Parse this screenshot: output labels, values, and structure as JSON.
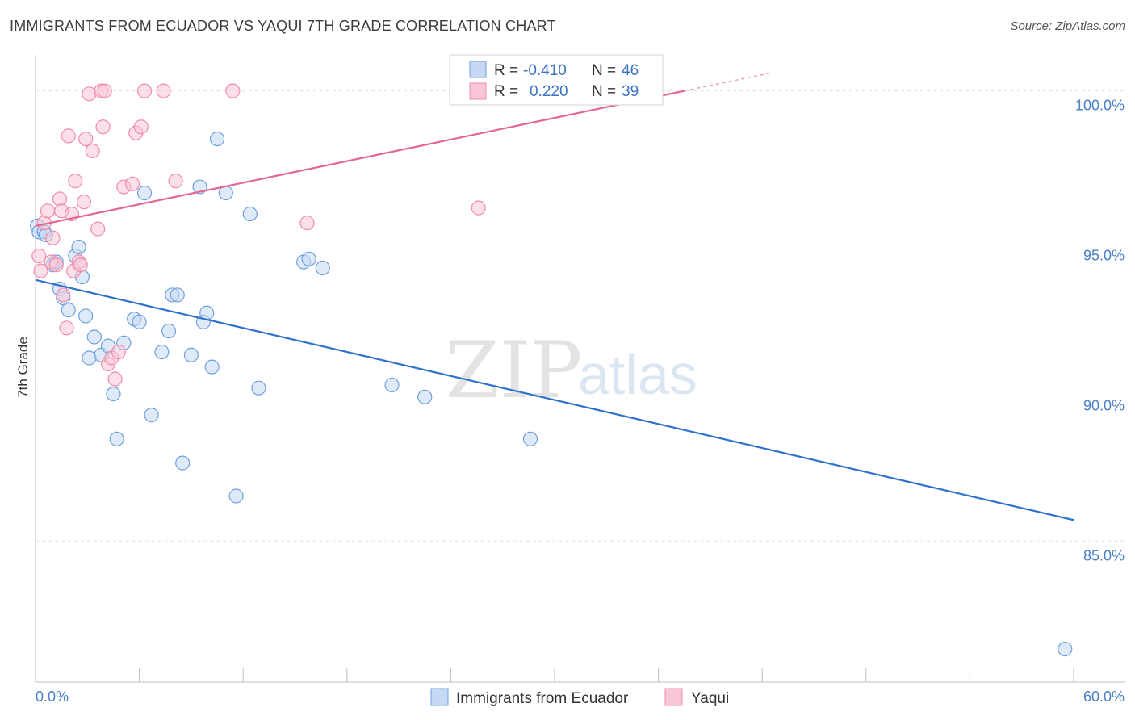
{
  "title": "IMMIGRANTS FROM ECUADOR VS YAQUI 7TH GRADE CORRELATION CHART",
  "source": "Source: ZipAtlas.com",
  "watermark": {
    "zip": "ZIP",
    "atlas": "atlas"
  },
  "chart_data": {
    "type": "scatter",
    "title": "IMMIGRANTS FROM ECUADOR VS YAQUI 7TH GRADE CORRELATION CHART",
    "xlabel": "",
    "ylabel": "7th Grade",
    "xlim": [
      0,
      60
    ],
    "ylim": [
      80.3,
      101.2
    ],
    "x_tick_labels": {
      "min": "0.0%",
      "max": "60.0%"
    },
    "y_ticks": [
      {
        "value": 100,
        "label": "100.0%"
      },
      {
        "value": 95,
        "label": "95.0%"
      },
      {
        "value": 90,
        "label": "90.0%"
      },
      {
        "value": 85,
        "label": "85.0%"
      }
    ],
    "grid": true,
    "legend_placement": "top-center",
    "series": [
      {
        "name": "Immigrants from Ecuador",
        "color": "#6fa0dc",
        "fill": "#c5d9f4",
        "stat": {
          "r_label": "R =",
          "r": "-0.410",
          "n_label": "N =",
          "n": "46"
        },
        "trend": {
          "x0": 0,
          "y0": 93.7,
          "x1": 60,
          "y1": 85.7
        },
        "points": [
          [
            0.1,
            95.5
          ],
          [
            0.2,
            95.3
          ],
          [
            0.5,
            95.3
          ],
          [
            0.6,
            95.2
          ],
          [
            1.0,
            94.2
          ],
          [
            1.2,
            94.3
          ],
          [
            1.4,
            93.4
          ],
          [
            1.6,
            93.1
          ],
          [
            1.9,
            92.7
          ],
          [
            2.3,
            94.5
          ],
          [
            2.5,
            94.8
          ],
          [
            2.7,
            93.8
          ],
          [
            2.9,
            92.5
          ],
          [
            3.1,
            91.1
          ],
          [
            3.4,
            91.8
          ],
          [
            3.8,
            91.2
          ],
          [
            4.2,
            91.5
          ],
          [
            4.5,
            89.9
          ],
          [
            4.7,
            88.4
          ],
          [
            5.1,
            91.6
          ],
          [
            5.7,
            92.4
          ],
          [
            6.0,
            92.3
          ],
          [
            6.3,
            96.6
          ],
          [
            6.7,
            89.2
          ],
          [
            7.3,
            91.3
          ],
          [
            7.7,
            92.0
          ],
          [
            7.9,
            93.2
          ],
          [
            8.2,
            93.2
          ],
          [
            8.5,
            87.6
          ],
          [
            9.0,
            91.2
          ],
          [
            9.5,
            96.8
          ],
          [
            9.7,
            92.3
          ],
          [
            9.9,
            92.6
          ],
          [
            10.2,
            90.8
          ],
          [
            10.5,
            98.4
          ],
          [
            11.0,
            96.6
          ],
          [
            11.6,
            86.5
          ],
          [
            12.4,
            95.9
          ],
          [
            12.9,
            90.1
          ],
          [
            15.5,
            94.3
          ],
          [
            15.8,
            94.4
          ],
          [
            16.6,
            94.1
          ],
          [
            20.6,
            90.2
          ],
          [
            22.5,
            89.8
          ],
          [
            28.6,
            88.4
          ],
          [
            59.5,
            81.4
          ]
        ]
      },
      {
        "name": "Yaqui",
        "color": "#f08cab",
        "fill": "#f9c6d5",
        "stat": {
          "r_label": "R =",
          "r": "0.220",
          "n_label": "N =",
          "n": "39"
        },
        "trend": {
          "x0": 0,
          "y0": 95.5,
          "x1": 37.5,
          "y1": 100.0
        },
        "points": [
          [
            0.2,
            94.5
          ],
          [
            0.3,
            94.0
          ],
          [
            0.5,
            95.6
          ],
          [
            0.7,
            96.0
          ],
          [
            0.9,
            94.3
          ],
          [
            1.0,
            95.1
          ],
          [
            1.2,
            94.2
          ],
          [
            1.4,
            96.4
          ],
          [
            1.5,
            96.0
          ],
          [
            1.6,
            93.2
          ],
          [
            1.8,
            92.1
          ],
          [
            1.9,
            98.5
          ],
          [
            2.1,
            95.9
          ],
          [
            2.2,
            94.0
          ],
          [
            2.3,
            97.0
          ],
          [
            2.5,
            94.3
          ],
          [
            2.6,
            94.2
          ],
          [
            2.8,
            96.3
          ],
          [
            2.9,
            98.4
          ],
          [
            3.1,
            99.9
          ],
          [
            3.3,
            98.0
          ],
          [
            3.6,
            95.4
          ],
          [
            3.8,
            100.0
          ],
          [
            3.9,
            98.8
          ],
          [
            4.0,
            100.0
          ],
          [
            4.2,
            90.9
          ],
          [
            4.4,
            91.1
          ],
          [
            4.6,
            90.4
          ],
          [
            4.8,
            91.3
          ],
          [
            5.1,
            96.8
          ],
          [
            5.6,
            96.9
          ],
          [
            5.8,
            98.6
          ],
          [
            6.1,
            98.8
          ],
          [
            6.3,
            100.0
          ],
          [
            7.4,
            100.0
          ],
          [
            8.1,
            97.0
          ],
          [
            11.4,
            100.0
          ],
          [
            15.7,
            95.6
          ],
          [
            25.6,
            96.1
          ]
        ]
      }
    ]
  }
}
